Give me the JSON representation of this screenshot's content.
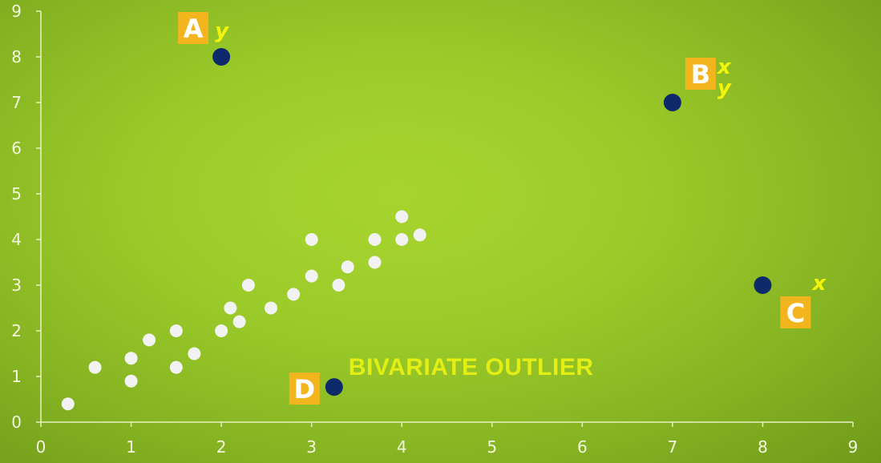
{
  "chart_data": {
    "type": "scatter",
    "xlim": [
      0,
      9
    ],
    "ylim": [
      0,
      9
    ],
    "x_ticks": [
      "0",
      "1",
      "2",
      "3",
      "4",
      "5",
      "6",
      "7",
      "8",
      "9"
    ],
    "y_ticks": [
      "0",
      "1",
      "2",
      "3",
      "4",
      "5",
      "6",
      "7",
      "8",
      "9"
    ],
    "grid": false,
    "point_colors": {
      "normal": "#f2f2f2",
      "outlier": "#0e2a6b"
    },
    "badge_color": "#f2b51e",
    "label_color": "#f3f40a",
    "series": [
      {
        "points": [
          {
            "x": 0.3,
            "y": 0.4
          },
          {
            "x": 0.6,
            "y": 1.2
          },
          {
            "x": 1.0,
            "y": 0.9
          },
          {
            "x": 1.0,
            "y": 1.4
          },
          {
            "x": 1.2,
            "y": 1.8
          },
          {
            "x": 1.5,
            "y": 1.2
          },
          {
            "x": 1.5,
            "y": 2.0
          },
          {
            "x": 1.7,
            "y": 1.5
          },
          {
            "x": 2.0,
            "y": 2.0
          },
          {
            "x": 2.1,
            "y": 2.5
          },
          {
            "x": 2.2,
            "y": 2.2
          },
          {
            "x": 2.3,
            "y": 3.0
          },
          {
            "x": 2.55,
            "y": 2.5
          },
          {
            "x": 2.8,
            "y": 2.8
          },
          {
            "x": 3.0,
            "y": 3.2
          },
          {
            "x": 3.0,
            "y": 4.0
          },
          {
            "x": 3.3,
            "y": 3.0
          },
          {
            "x": 3.4,
            "y": 3.4
          },
          {
            "x": 3.7,
            "y": 3.5
          },
          {
            "x": 3.7,
            "y": 4.0
          },
          {
            "x": 4.0,
            "y": 4.0
          },
          {
            "x": 4.0,
            "y": 4.5
          },
          {
            "x": 4.2,
            "y": 4.1
          }
        ]
      }
    ],
    "outliers": [
      {
        "id": "A",
        "x": 2.0,
        "y": 8.0,
        "letter": "A",
        "marks": [
          "y"
        ]
      },
      {
        "id": "B",
        "x": 7.0,
        "y": 7.0,
        "letter": "B",
        "marks": [
          "x",
          "y"
        ]
      },
      {
        "id": "C",
        "x": 8.0,
        "y": 3.0,
        "letter": "C",
        "marks": [
          "x"
        ]
      },
      {
        "id": "D",
        "x": 3.25,
        "y": 0.77,
        "letter": "D",
        "marks": []
      }
    ],
    "annotations": [
      {
        "id": "bivariate",
        "text": "BIVARIATE OUTLIER",
        "target": "D"
      }
    ]
  }
}
